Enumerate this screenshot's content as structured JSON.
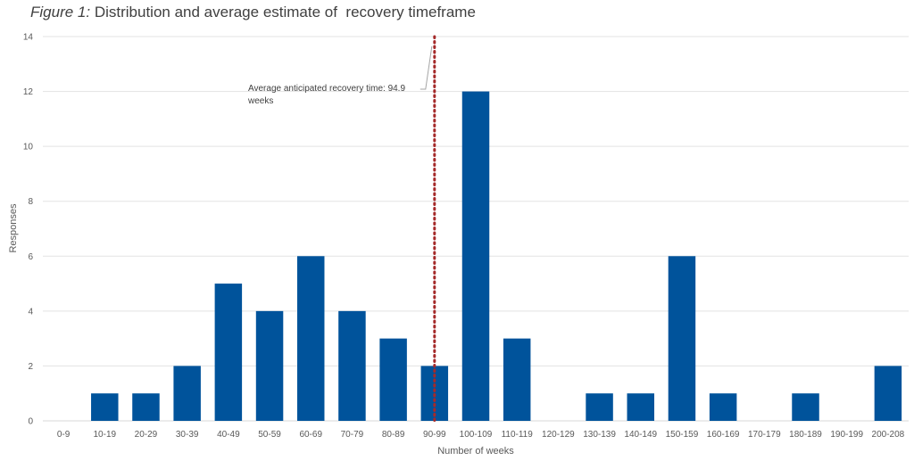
{
  "caption": {
    "figure_label": "Figure 1:",
    "text": " Distribution and average estimate of  recovery timeframe"
  },
  "chart_data": {
    "type": "bar",
    "categories": [
      "0-9",
      "10-19",
      "20-29",
      "30-39",
      "40-49",
      "50-59",
      "60-69",
      "70-79",
      "80-89",
      "90-99",
      "100-109",
      "110-119",
      "120-129",
      "130-139",
      "140-149",
      "150-159",
      "160-169",
      "170-179",
      "180-189",
      "190-199",
      "200-208"
    ],
    "values": [
      0,
      1,
      1,
      2,
      5,
      4,
      6,
      4,
      3,
      2,
      12,
      3,
      0,
      1,
      1,
      6,
      1,
      0,
      1,
      0,
      2
    ],
    "xlabel": "Number of weeks",
    "ylabel": "Responses",
    "ylim": [
      0,
      14
    ],
    "yticks": [
      0,
      2,
      4,
      6,
      8,
      10,
      12,
      14
    ],
    "grid": true,
    "bar_color": "#00539b",
    "reference_line": {
      "value": 94.9,
      "category_position": "90-99",
      "color": "#a52a2a",
      "style": "dotted",
      "annotation_line1": "Average anticipated recovery time: 94.9",
      "annotation_line2": "weeks"
    }
  }
}
